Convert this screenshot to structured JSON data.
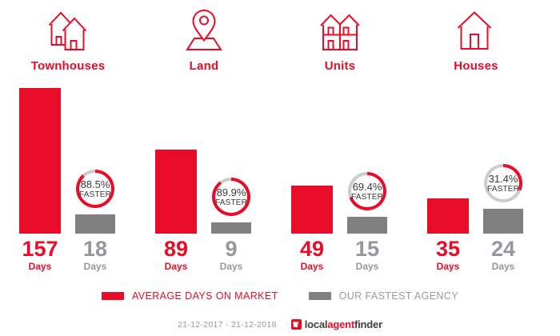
{
  "colors": {
    "accent_red": "#e90c28",
    "bar_gray": "#808080",
    "ring_track": "#cccccc",
    "text_gray": "#94989c",
    "badge_text": "#3a3a3a",
    "footer_gray": "#999999",
    "logo_dark": "#3f3f3f"
  },
  "groups": [
    {
      "label": "Townhouses",
      "icon": "townhouses-icon",
      "avg": {
        "days": 157,
        "unit": "Days"
      },
      "fastest": {
        "days": 18,
        "unit": "Days"
      },
      "badge": {
        "pct_text": "88.5%",
        "pct_num": 88.5,
        "label": "FASTER"
      }
    },
    {
      "label": "Land",
      "icon": "land-pin-icon",
      "avg": {
        "days": 89,
        "unit": "Days"
      },
      "fastest": {
        "days": 9,
        "unit": "Days"
      },
      "badge": {
        "pct_text": "89.9%",
        "pct_num": 89.9,
        "label": "FASTER"
      }
    },
    {
      "label": "Units",
      "icon": "units-icon",
      "avg": {
        "days": 49,
        "unit": "Days"
      },
      "fastest": {
        "days": 15,
        "unit": "Days"
      },
      "badge": {
        "pct_text": "69.4%",
        "pct_num": 69.4,
        "label": "FASTER"
      }
    },
    {
      "label": "Houses",
      "icon": "house-icon",
      "avg": {
        "days": 35,
        "unit": "Days"
      },
      "fastest": {
        "days": 24,
        "unit": "Days"
      },
      "badge": {
        "pct_text": "31.4%",
        "pct_num": 31.4,
        "label": "FASTER"
      }
    }
  ],
  "legend": {
    "avg_label": "AVERAGE DAYS ON MARKET",
    "fastest_label": "OUR FASTEST AGENCY"
  },
  "footer": {
    "date_range": "21-12-2017 - 21-12-2018",
    "logo": {
      "part1": "local",
      "part2": "agent",
      "part3": "finder"
    }
  },
  "chart_data": {
    "type": "bar",
    "categories": [
      "Townhouses",
      "Land",
      "Units",
      "Houses"
    ],
    "series": [
      {
        "name": "AVERAGE DAYS ON MARKET",
        "color": "#e90c28",
        "values": [
          157,
          89,
          49,
          35
        ]
      },
      {
        "name": "OUR FASTEST AGENCY",
        "color": "#808080",
        "values": [
          18,
          9,
          15,
          24
        ]
      }
    ],
    "unit": "Days",
    "annotations": [
      {
        "category": "Townhouses",
        "text": "88.5% FASTER",
        "pct": 88.5
      },
      {
        "category": "Land",
        "text": "89.9% FASTER",
        "pct": 89.9
      },
      {
        "category": "Units",
        "text": "69.4% FASTER",
        "pct": 69.4
      },
      {
        "category": "Houses",
        "text": "31.4% FASTER",
        "pct": 31.4
      }
    ],
    "title": "",
    "xlabel": "",
    "ylabel": "Days",
    "grid": false,
    "legend_position": "bottom",
    "date_range": "21-12-2017 - 21-12-2018"
  }
}
